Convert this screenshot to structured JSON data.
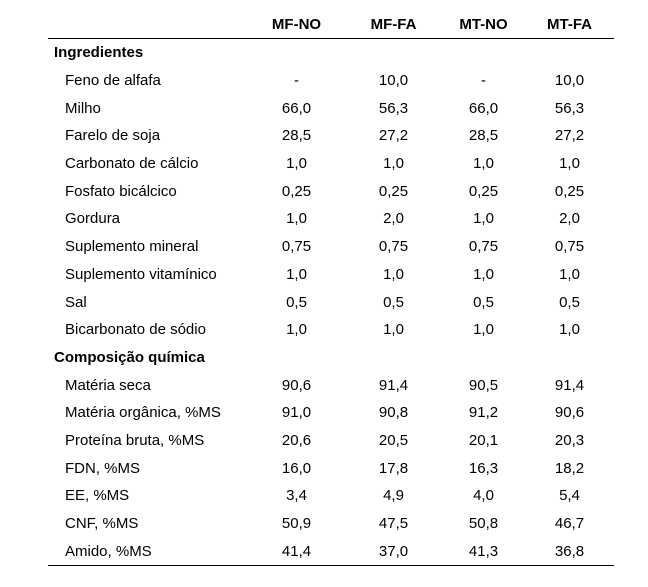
{
  "columns": [
    "",
    "MF-NO",
    "MF-FA",
    "MT-NO",
    "MT-FA"
  ],
  "sections": [
    {
      "title": "Ingredientes",
      "rows": [
        {
          "label": "Feno de alfafa",
          "values": [
            "-",
            "10,0",
            "-",
            "10,0"
          ]
        },
        {
          "label": "Milho",
          "values": [
            "66,0",
            "56,3",
            "66,0",
            "56,3"
          ]
        },
        {
          "label": "Farelo de soja",
          "values": [
            "28,5",
            "27,2",
            "28,5",
            "27,2"
          ]
        },
        {
          "label": "Carbonato de cálcio",
          "values": [
            "1,0",
            "1,0",
            "1,0",
            "1,0"
          ]
        },
        {
          "label": "Fosfato bicálcico",
          "values": [
            "0,25",
            "0,25",
            "0,25",
            "0,25"
          ]
        },
        {
          "label": "Gordura",
          "values": [
            "1,0",
            "2,0",
            "1,0",
            "2,0"
          ]
        },
        {
          "label": "Suplemento mineral",
          "values": [
            "0,75",
            "0,75",
            "0,75",
            "0,75"
          ]
        },
        {
          "label": "Suplemento vitamínico",
          "values": [
            "1,0",
            "1,0",
            "1,0",
            "1,0"
          ]
        },
        {
          "label": "Sal",
          "values": [
            "0,5",
            "0,5",
            "0,5",
            "0,5"
          ]
        },
        {
          "label": "Bicarbonato de sódio",
          "values": [
            "1,0",
            "1,0",
            "1,0",
            "1,0"
          ]
        }
      ]
    },
    {
      "title": "Composição química",
      "rows": [
        {
          "label": "Matéria seca",
          "values": [
            "90,6",
            "91,4",
            "90,5",
            "91,4"
          ]
        },
        {
          "label": "Matéria orgânica, %MS",
          "values": [
            "91,0",
            "90,8",
            "91,2",
            "90,6"
          ]
        },
        {
          "label": "Proteína bruta, %MS",
          "values": [
            "20,6",
            "20,5",
            "20,1",
            "20,3"
          ]
        },
        {
          "label": "FDN, %MS",
          "values": [
            "16,0",
            "17,8",
            "16,3",
            "18,2"
          ]
        },
        {
          "label": "EE, %MS",
          "values": [
            "3,4",
            "4,9",
            "4,0",
            "5,4"
          ]
        },
        {
          "label": "CNF, %MS",
          "values": [
            "50,9",
            "47,5",
            "50,8",
            "46,7"
          ]
        },
        {
          "label": "Amido, %MS",
          "values": [
            "41,4",
            "37,0",
            "41,3",
            "36,8"
          ]
        }
      ]
    }
  ]
}
